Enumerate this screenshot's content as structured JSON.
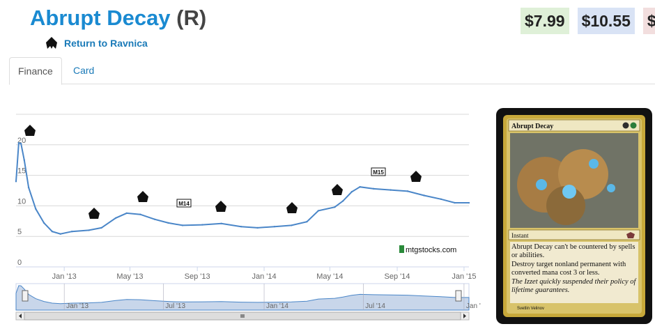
{
  "header": {
    "card_name": "Abrupt Decay",
    "rarity": "(R)",
    "set_name": "Return to Ravnica"
  },
  "prices": [
    "$7.99",
    "$10.55",
    "$"
  ],
  "tabs": [
    {
      "label": "Finance"
    },
    {
      "label": "Card"
    }
  ],
  "chart_data": {
    "type": "line",
    "ylim": [
      0,
      25
    ],
    "yticks": [
      "0",
      "5",
      "10",
      "15",
      "20"
    ],
    "xticks": [
      "Jan '13",
      "May '13",
      "Sep '13",
      "Jan '14",
      "May '14",
      "Sep '14",
      "Jan '15"
    ],
    "navigator_ticks": [
      "Jan '13",
      "Jul '13",
      "Jan '14",
      "Jul '14",
      "Jan '"
    ],
    "watermark": "mtgstocks.com",
    "x_start": "2012-10-05",
    "x_end": "2015-01-10",
    "series": [
      {
        "values": [
          [
            "2012-10-05",
            14.0
          ],
          [
            "2012-10-10",
            20.3
          ],
          [
            "2012-10-14",
            20.2
          ],
          [
            "2012-10-20",
            17.5
          ],
          [
            "2012-10-28",
            13.0
          ],
          [
            "2012-11-10",
            9.5
          ],
          [
            "2012-11-25",
            7.2
          ],
          [
            "2012-12-10",
            5.8
          ],
          [
            "2012-12-25",
            5.4
          ],
          [
            "2013-01-15",
            5.8
          ],
          [
            "2013-02-15",
            6.0
          ],
          [
            "2013-03-10",
            6.4
          ],
          [
            "2013-04-05",
            8.0
          ],
          [
            "2013-04-25",
            8.8
          ],
          [
            "2013-05-20",
            8.6
          ],
          [
            "2013-06-15",
            7.8
          ],
          [
            "2013-07-10",
            7.2
          ],
          [
            "2013-08-05",
            6.8
          ],
          [
            "2013-09-10",
            6.9
          ],
          [
            "2013-10-15",
            7.1
          ],
          [
            "2013-11-20",
            6.6
          ],
          [
            "2013-12-20",
            6.4
          ],
          [
            "2014-01-20",
            6.6
          ],
          [
            "2014-02-20",
            6.8
          ],
          [
            "2014-03-20",
            7.4
          ],
          [
            "2014-04-10",
            9.2
          ],
          [
            "2014-05-10",
            9.8
          ],
          [
            "2014-05-25",
            10.8
          ],
          [
            "2014-06-10",
            12.3
          ],
          [
            "2014-06-25",
            13.1
          ],
          [
            "2014-07-20",
            12.8
          ],
          [
            "2014-08-20",
            12.6
          ],
          [
            "2014-09-20",
            12.4
          ],
          [
            "2014-10-20",
            11.7
          ],
          [
            "2014-11-20",
            11.1
          ],
          [
            "2014-12-15",
            10.5
          ],
          [
            "2015-01-10",
            10.5
          ]
        ]
      }
    ],
    "set_markers": [
      "icon",
      "icon",
      "icon",
      "M14",
      "icon",
      "icon",
      "icon",
      "M15",
      "icon"
    ]
  },
  "card_image": {
    "name": "Abrupt Decay",
    "type_line": "Instant",
    "rules": [
      "Abrupt Decay can't be countered by spells or abilities.",
      "Destroy target nonland permanent with converted mana cost 3 or less."
    ],
    "flavor": "The Izzet quickly suspended their policy of lifetime guarantees.",
    "artist": "Svetlin Velinov"
  }
}
